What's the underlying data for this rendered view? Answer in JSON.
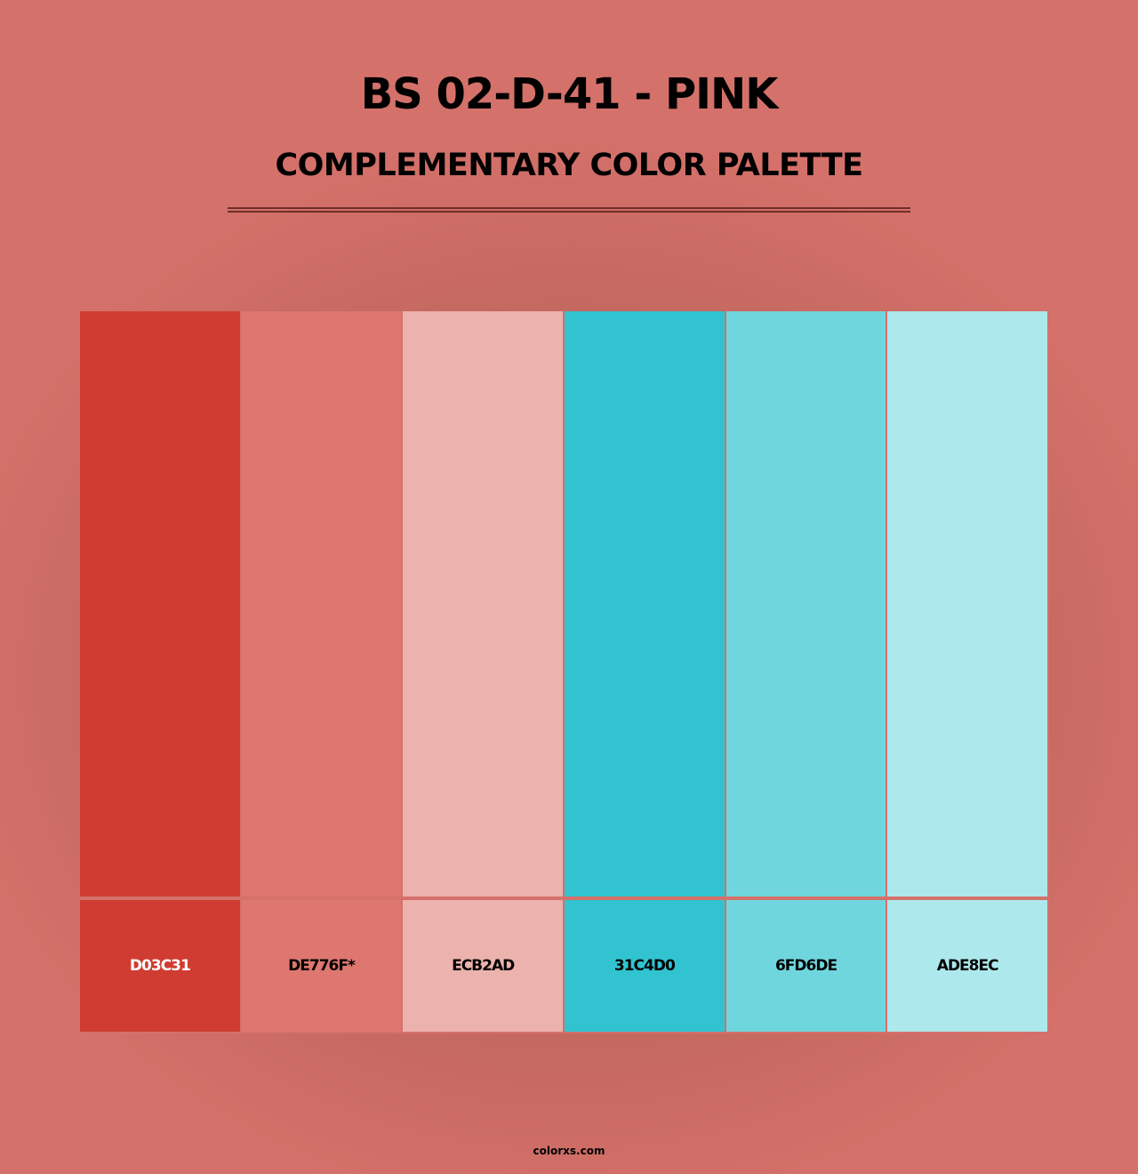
{
  "header": {
    "title": "BS 02-D-41 - PINK",
    "subtitle": "COMPLEMENTARY COLOR PALETTE"
  },
  "palette": [
    {
      "hex": "D03C31",
      "color": "#D03C31",
      "text_color": "#ffffff"
    },
    {
      "hex": "DE776F*",
      "color": "#DE776F",
      "text_color": "#000000"
    },
    {
      "hex": "ECB2AD",
      "color": "#ECB2AD",
      "text_color": "#000000"
    },
    {
      "hex": "31C4D0",
      "color": "#31C4D0",
      "text_color": "#000000"
    },
    {
      "hex": "6FD6DE",
      "color": "#6FD6DE",
      "text_color": "#000000"
    },
    {
      "hex": "ADE8EC",
      "color": "#ADE8EC",
      "text_color": "#000000"
    }
  ],
  "footer": {
    "site": "colorxs.com"
  }
}
